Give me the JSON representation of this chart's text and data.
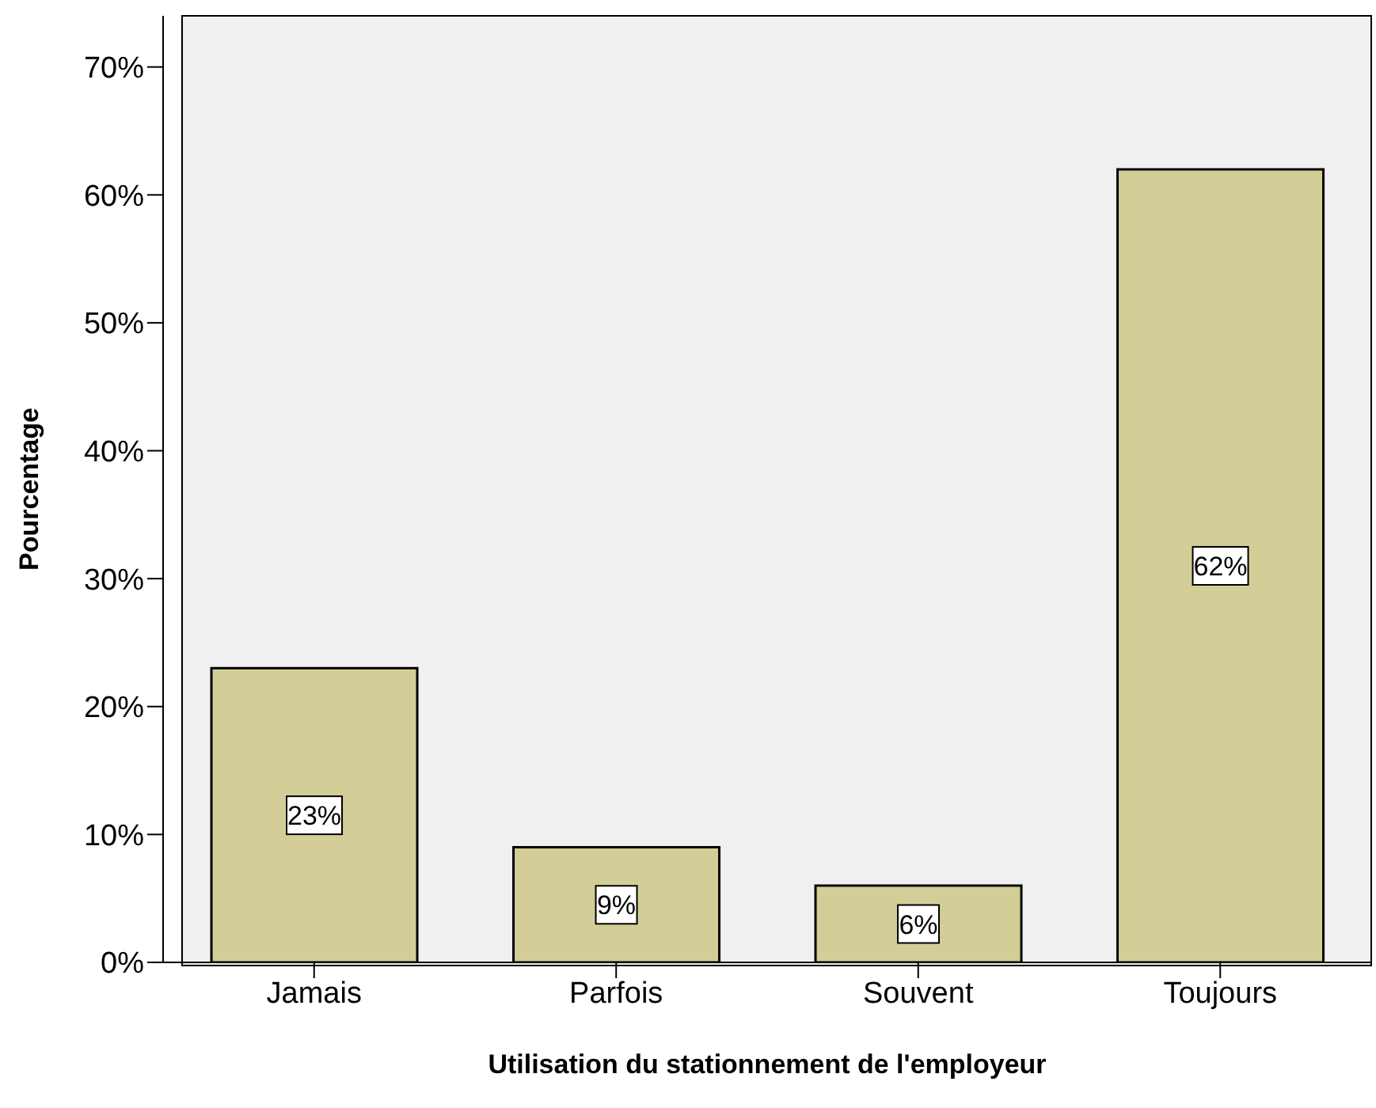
{
  "chart_data": {
    "type": "bar",
    "xlabel": "Utilisation du stationnement de l'employeur",
    "ylabel": "Pourcentage",
    "categories": [
      "Jamais",
      "Parfois",
      "Souvent",
      "Toujours"
    ],
    "values": [
      23,
      9,
      6,
      62
    ],
    "value_labels": [
      "23%",
      "9%",
      "6%",
      "62%"
    ],
    "color": "#d3ce97",
    "ylim": [
      0,
      74
    ],
    "yticks": [
      {
        "value": 0,
        "label": "0%"
      },
      {
        "value": 10,
        "label": "10%"
      },
      {
        "value": 20,
        "label": "20%"
      },
      {
        "value": 30,
        "label": "30%"
      },
      {
        "value": 40,
        "label": "40%"
      },
      {
        "value": 50,
        "label": "50%"
      },
      {
        "value": 60,
        "label": "60%"
      },
      {
        "value": 70,
        "label": "70%"
      }
    ],
    "grid": false
  }
}
